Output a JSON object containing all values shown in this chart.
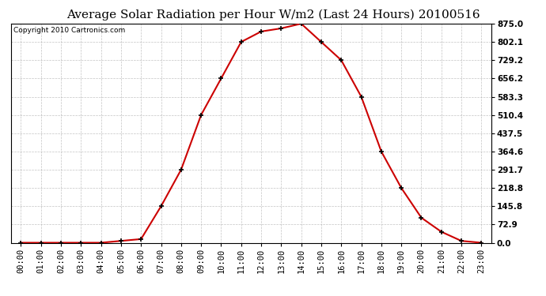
{
  "title": "Average Solar Radiation per Hour W/m2 (Last 24 Hours) 20100516",
  "copyright": "Copyright 2010 Cartronics.com",
  "hours": [
    "00:00",
    "01:00",
    "02:00",
    "03:00",
    "04:00",
    "05:00",
    "06:00",
    "07:00",
    "08:00",
    "09:00",
    "10:00",
    "11:00",
    "12:00",
    "13:00",
    "14:00",
    "15:00",
    "16:00",
    "17:00",
    "18:00",
    "19:00",
    "20:00",
    "21:00",
    "22:00",
    "23:00"
  ],
  "values": [
    0.0,
    0.0,
    0.0,
    0.0,
    0.0,
    7.3,
    14.6,
    145.8,
    291.7,
    510.4,
    656.2,
    802.1,
    843.8,
    856.3,
    875.0,
    802.1,
    729.2,
    583.3,
    364.6,
    218.8,
    100.0,
    43.7,
    7.3,
    0.0
  ],
  "yticks": [
    0.0,
    72.9,
    145.8,
    218.8,
    291.7,
    364.6,
    437.5,
    510.4,
    583.3,
    656.2,
    729.2,
    802.1,
    875.0
  ],
  "ytick_labels": [
    "0.0",
    "72.9",
    "145.8",
    "218.8",
    "291.7",
    "364.6",
    "437.5",
    "510.4",
    "583.3",
    "656.2",
    "729.2",
    "802.1",
    "875.0"
  ],
  "line_color": "#cc0000",
  "marker": "+",
  "marker_color": "#000000",
  "bg_color": "#ffffff",
  "grid_color": "#aaaaaa",
  "title_fontsize": 11,
  "copyright_fontsize": 6.5,
  "tick_fontsize": 7.5,
  "ylim": [
    0.0,
    875.0
  ],
  "ymax": 875.0
}
